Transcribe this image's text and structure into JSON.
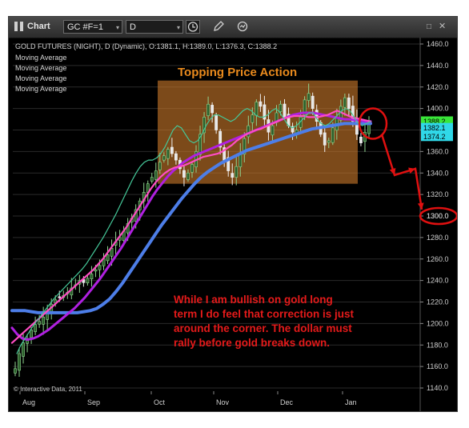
{
  "toolbar": {
    "chart_label": "Chart",
    "symbol": "GC #F=1",
    "period": "D"
  },
  "legend": {
    "title": "GOLD FUTURES (NIGHT), D (Dynamic), O:1381.1, H:1389.0, L:1376.3, C:1388.2",
    "ma_lines": [
      "Moving Average",
      "Moving Average",
      "Moving Average",
      "Moving Average"
    ]
  },
  "annotations": {
    "topping": "Topping Price Action",
    "commentary_lines": [
      "While I am bullish on gold long",
      "term I do feel that correction is just",
      "around the corner. The dollar must",
      "rally before gold breaks down."
    ],
    "copyright": "© Interactive Data, 2011"
  },
  "colors": {
    "ma_fast": "#45c99a",
    "ma_mid": "#ff4dc4",
    "ma_purple": "#b020e0",
    "ma_slow": "#4d7ee8",
    "annotation_red": "#e01010",
    "box_fill": "#c8782a",
    "price_label_green": "#39e639",
    "price_label_cyan": "#30d8e8"
  },
  "chart_data": {
    "type": "candlestick",
    "yaxis": {
      "min": 1140,
      "max": 1460,
      "ticks": [
        "1460.0",
        "1440.0",
        "1420.0",
        "1400.0",
        "1380.0",
        "1360.0",
        "1340.0",
        "1320.0",
        "1300.0",
        "1280.0",
        "1260.0",
        "1240.0",
        "1220.0",
        "1200.0",
        "1180.0",
        "1160.0",
        "1140.0"
      ]
    },
    "xaxis": {
      "labels": [
        "Aug",
        "Sep",
        "Oct",
        "Nov",
        "Dec",
        "Jan"
      ]
    },
    "price_labels": [
      {
        "text": "1388.2",
        "value": 1388.2,
        "color": "green"
      },
      {
        "text": "1382.1",
        "value": 1382.1,
        "color": "cyan"
      },
      {
        "text": "1374.2",
        "value": 1374.2,
        "color": "cyan"
      }
    ],
    "target_label": "1300.0",
    "target_value": 1300,
    "close_path": [
      1158,
      1172,
      1182,
      1186,
      1194,
      1199,
      1202,
      1206,
      1212,
      1218,
      1222,
      1224,
      1226,
      1229,
      1233,
      1236,
      1240,
      1238,
      1242,
      1246,
      1250,
      1254,
      1260,
      1264,
      1270,
      1276,
      1280,
      1286,
      1293,
      1298,
      1306,
      1314,
      1322,
      1330,
      1336,
      1342,
      1350,
      1356,
      1362,
      1358,
      1352,
      1344,
      1336,
      1340,
      1348,
      1360,
      1376,
      1392,
      1404,
      1396,
      1380,
      1364,
      1352,
      1342,
      1336,
      1346,
      1358,
      1372,
      1384,
      1394,
      1406,
      1402,
      1390,
      1378,
      1384,
      1396,
      1404,
      1392,
      1384,
      1378,
      1380,
      1392,
      1408,
      1414,
      1400,
      1388,
      1376,
      1366,
      1370,
      1382,
      1392,
      1402,
      1410,
      1400,
      1388,
      1376,
      1368,
      1378,
      1388
    ],
    "moving_averages": {
      "fast": [
        1172,
        1180,
        1186,
        1192,
        1198,
        1203,
        1208,
        1213,
        1218,
        1223,
        1227,
        1231,
        1235,
        1239,
        1243,
        1247,
        1251,
        1256,
        1262,
        1268,
        1274,
        1280,
        1287,
        1294,
        1301,
        1309,
        1317,
        1325,
        1333,
        1340,
        1346,
        1350,
        1352,
        1352,
        1354,
        1358,
        1364,
        1372,
        1380,
        1384,
        1382,
        1376,
        1370,
        1368,
        1370,
        1376,
        1384,
        1390,
        1394,
        1394,
        1392,
        1390,
        1388,
        1390,
        1394,
        1398,
        1400,
        1398,
        1394,
        1392,
        1392,
        1394,
        1398,
        1400,
        1396,
        1390,
        1384,
        1382,
        1384,
        1388,
        1392,
        1396,
        1396,
        1390,
        1386,
        1384,
        1386,
        1390,
        1394,
        1398,
        1400,
        1398,
        1392,
        1386,
        1384,
        1386,
        1388
      ],
      "mid": [
        1182,
        1186,
        1190,
        1194,
        1198,
        1202,
        1206,
        1210,
        1214,
        1218,
        1222,
        1226,
        1230,
        1234,
        1238,
        1242,
        1246,
        1250,
        1255,
        1260,
        1266,
        1272,
        1278,
        1284,
        1290,
        1297,
        1304,
        1311,
        1318,
        1325,
        1331,
        1336,
        1340,
        1343,
        1345,
        1346,
        1347,
        1349,
        1351,
        1353,
        1355,
        1356,
        1357,
        1358,
        1360,
        1363,
        1366,
        1370,
        1373,
        1376,
        1378,
        1380,
        1381,
        1383,
        1385,
        1387,
        1389,
        1391,
        1392,
        1393,
        1393,
        1393,
        1392,
        1392,
        1392,
        1393,
        1394,
        1396,
        1398,
        1396,
        1394,
        1392,
        1391,
        1390,
        1389,
        1388
      ],
      "purple": [
        1196,
        1190,
        1186,
        1185,
        1186,
        1188,
        1191,
        1194,
        1198,
        1202,
        1206,
        1210,
        1214,
        1219,
        1224,
        1230,
        1236,
        1242,
        1249,
        1256,
        1263,
        1270,
        1278,
        1286,
        1294,
        1302,
        1310,
        1318,
        1325,
        1331,
        1337,
        1342,
        1346,
        1350,
        1353,
        1356,
        1358,
        1360,
        1362,
        1364,
        1366,
        1368,
        1370,
        1372,
        1374,
        1376,
        1378,
        1380,
        1382,
        1384,
        1386,
        1388,
        1390,
        1392,
        1394,
        1395,
        1396,
        1396,
        1396,
        1395,
        1394,
        1393,
        1392,
        1391,
        1390,
        1390,
        1389,
        1389,
        1388,
        1388
      ],
      "slow": [
        1212,
        1212,
        1212,
        1211,
        1210,
        1210,
        1210,
        1210,
        1210,
        1210,
        1210,
        1211,
        1212,
        1214,
        1218,
        1223,
        1230,
        1238,
        1247,
        1256,
        1265,
        1274,
        1283,
        1292,
        1300,
        1308,
        1316,
        1323,
        1330,
        1336,
        1341,
        1345,
        1349,
        1352,
        1355,
        1358,
        1361,
        1363,
        1365,
        1367,
        1369,
        1371,
        1373,
        1375,
        1377,
        1379,
        1381,
        1382,
        1383,
        1384,
        1385,
        1386,
        1386,
        1386,
        1386,
        1386
      ]
    }
  }
}
